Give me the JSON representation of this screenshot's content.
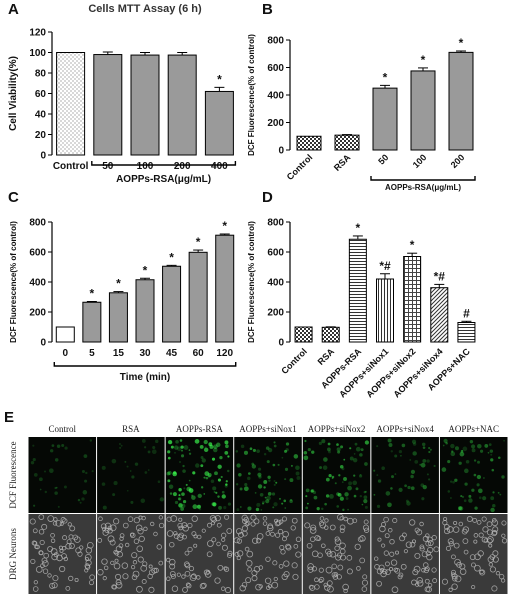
{
  "panel_labels": {
    "A": "A",
    "B": "B",
    "C": "C",
    "D": "D",
    "E": "E"
  },
  "chart_data": [
    {
      "id": "A",
      "type": "bar",
      "title": "Cells MTT Assay (6 h)",
      "ylabel": "Cell Viability(%)",
      "xlabel": "AOPPs-RSA(μg/mL)",
      "ylim": [
        0,
        120
      ],
      "yticks": [
        0,
        20,
        40,
        60,
        80,
        100,
        120
      ],
      "categories": [
        "Control",
        "50",
        "100",
        "200",
        "400"
      ],
      "values": [
        100,
        98,
        97.5,
        97.5,
        62
      ],
      "errors": [
        0,
        2.5,
        2.5,
        2.5,
        4
      ],
      "annotations": [
        "",
        "",
        "",
        "",
        "*"
      ],
      "fills": [
        "dots",
        "gray",
        "gray",
        "gray",
        "gray"
      ]
    },
    {
      "id": "B",
      "type": "bar",
      "ylabel": "DCF Fluorescence(% of control)",
      "xlabel": "AOPPs-RSA(μg/mL)",
      "ylim": [
        0,
        800
      ],
      "yticks": [
        0,
        200,
        400,
        600,
        800
      ],
      "categories": [
        "Control",
        "RSA",
        "50",
        "100",
        "200"
      ],
      "values": [
        100,
        108,
        450,
        575,
        710
      ],
      "errors": [
        0,
        4,
        20,
        22,
        10
      ],
      "annotations": [
        "",
        "",
        "*",
        "*",
        "*"
      ],
      "fills": [
        "check",
        "check",
        "gray",
        "gray",
        "gray"
      ]
    },
    {
      "id": "C",
      "type": "bar",
      "ylabel": "DCF Fluorescence(% of control)",
      "xlabel": "Time (min)",
      "ylim": [
        0,
        800
      ],
      "yticks": [
        0,
        200,
        400,
        600,
        800
      ],
      "categories": [
        "0",
        "5",
        "15",
        "30",
        "45",
        "60",
        "120"
      ],
      "values": [
        100,
        265,
        328,
        415,
        505,
        598,
        712
      ],
      "errors": [
        0,
        5,
        8,
        10,
        6,
        15,
        8
      ],
      "annotations": [
        "",
        "*",
        "*",
        "*",
        "*",
        "*",
        "*"
      ],
      "fills": [
        "white",
        "gray",
        "gray",
        "gray",
        "gray",
        "gray",
        "gray"
      ]
    },
    {
      "id": "D",
      "type": "bar",
      "ylabel": "DCF Fluorescence(% of control)",
      "ylim": [
        0,
        800
      ],
      "yticks": [
        0,
        200,
        400,
        600,
        800
      ],
      "categories": [
        "Control",
        "RSA",
        "AOPPs-RSA",
        "AOPPs+siNox1",
        "AOPPs+siNox2",
        "AOPPs+siNox4",
        "AOPPs+NAC"
      ],
      "values": [
        100,
        98,
        685,
        420,
        570,
        362,
        130
      ],
      "errors": [
        0,
        3,
        22,
        35,
        22,
        22,
        8
      ],
      "annotations": [
        "",
        "",
        "*",
        "*#",
        "*",
        "*#",
        "#"
      ],
      "fills": [
        "check",
        "check",
        "hlines",
        "vlines",
        "grid",
        "diag",
        "hlines"
      ]
    }
  ],
  "panel_e": {
    "columns": [
      "Control",
      "RSA",
      "AOPPs-RSA",
      "AOPPs+siNox1",
      "AOPPs+siNox2",
      "AOPPs+siNox4",
      "AOPPs+NAC"
    ],
    "rows": [
      "DCF Fluorescence",
      "DRG Neurons"
    ],
    "fluorescence_level": [
      0.12,
      0.08,
      0.85,
      0.55,
      0.6,
      0.3,
      0.45
    ],
    "colors": {
      "fluor_bg": "#050805",
      "fluor_cell": "#3cff50",
      "bright_bg": "#3a3a3a",
      "bright_cell": "#b9b9b9"
    }
  }
}
